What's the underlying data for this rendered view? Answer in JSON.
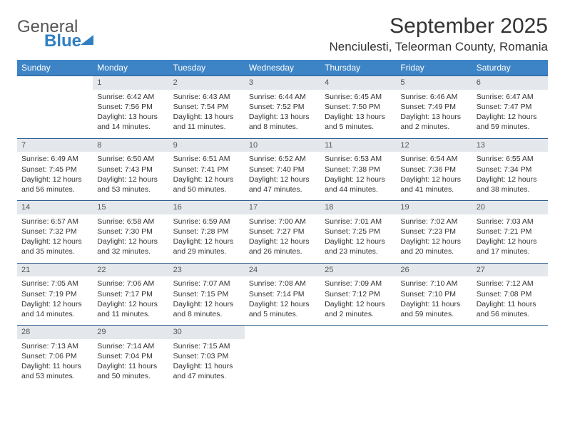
{
  "logo": {
    "general": "General",
    "blue": "Blue"
  },
  "title": "September 2025",
  "location": "Nenciulesti, Teleorman County, Romania",
  "weekdays": [
    "Sunday",
    "Monday",
    "Tuesday",
    "Wednesday",
    "Thursday",
    "Friday",
    "Saturday"
  ],
  "colors": {
    "header_bg": "#3d84c6",
    "daynum_bg": "#e4e8ec",
    "rule": "#2f5f8f",
    "logo_blue": "#2f7fc1"
  },
  "weeks": [
    {
      "nums": [
        "",
        "1",
        "2",
        "3",
        "4",
        "5",
        "6"
      ],
      "cells": [
        "",
        "Sunrise: 6:42 AM\nSunset: 7:56 PM\nDaylight: 13 hours and 14 minutes.",
        "Sunrise: 6:43 AM\nSunset: 7:54 PM\nDaylight: 13 hours and 11 minutes.",
        "Sunrise: 6:44 AM\nSunset: 7:52 PM\nDaylight: 13 hours and 8 minutes.",
        "Sunrise: 6:45 AM\nSunset: 7:50 PM\nDaylight: 13 hours and 5 minutes.",
        "Sunrise: 6:46 AM\nSunset: 7:49 PM\nDaylight: 13 hours and 2 minutes.",
        "Sunrise: 6:47 AM\nSunset: 7:47 PM\nDaylight: 12 hours and 59 minutes."
      ]
    },
    {
      "nums": [
        "7",
        "8",
        "9",
        "10",
        "11",
        "12",
        "13"
      ],
      "cells": [
        "Sunrise: 6:49 AM\nSunset: 7:45 PM\nDaylight: 12 hours and 56 minutes.",
        "Sunrise: 6:50 AM\nSunset: 7:43 PM\nDaylight: 12 hours and 53 minutes.",
        "Sunrise: 6:51 AM\nSunset: 7:41 PM\nDaylight: 12 hours and 50 minutes.",
        "Sunrise: 6:52 AM\nSunset: 7:40 PM\nDaylight: 12 hours and 47 minutes.",
        "Sunrise: 6:53 AM\nSunset: 7:38 PM\nDaylight: 12 hours and 44 minutes.",
        "Sunrise: 6:54 AM\nSunset: 7:36 PM\nDaylight: 12 hours and 41 minutes.",
        "Sunrise: 6:55 AM\nSunset: 7:34 PM\nDaylight: 12 hours and 38 minutes."
      ]
    },
    {
      "nums": [
        "14",
        "15",
        "16",
        "17",
        "18",
        "19",
        "20"
      ],
      "cells": [
        "Sunrise: 6:57 AM\nSunset: 7:32 PM\nDaylight: 12 hours and 35 minutes.",
        "Sunrise: 6:58 AM\nSunset: 7:30 PM\nDaylight: 12 hours and 32 minutes.",
        "Sunrise: 6:59 AM\nSunset: 7:28 PM\nDaylight: 12 hours and 29 minutes.",
        "Sunrise: 7:00 AM\nSunset: 7:27 PM\nDaylight: 12 hours and 26 minutes.",
        "Sunrise: 7:01 AM\nSunset: 7:25 PM\nDaylight: 12 hours and 23 minutes.",
        "Sunrise: 7:02 AM\nSunset: 7:23 PM\nDaylight: 12 hours and 20 minutes.",
        "Sunrise: 7:03 AM\nSunset: 7:21 PM\nDaylight: 12 hours and 17 minutes."
      ]
    },
    {
      "nums": [
        "21",
        "22",
        "23",
        "24",
        "25",
        "26",
        "27"
      ],
      "cells": [
        "Sunrise: 7:05 AM\nSunset: 7:19 PM\nDaylight: 12 hours and 14 minutes.",
        "Sunrise: 7:06 AM\nSunset: 7:17 PM\nDaylight: 12 hours and 11 minutes.",
        "Sunrise: 7:07 AM\nSunset: 7:15 PM\nDaylight: 12 hours and 8 minutes.",
        "Sunrise: 7:08 AM\nSunset: 7:14 PM\nDaylight: 12 hours and 5 minutes.",
        "Sunrise: 7:09 AM\nSunset: 7:12 PM\nDaylight: 12 hours and 2 minutes.",
        "Sunrise: 7:10 AM\nSunset: 7:10 PM\nDaylight: 11 hours and 59 minutes.",
        "Sunrise: 7:12 AM\nSunset: 7:08 PM\nDaylight: 11 hours and 56 minutes."
      ]
    },
    {
      "nums": [
        "28",
        "29",
        "30",
        "",
        "",
        "",
        ""
      ],
      "cells": [
        "Sunrise: 7:13 AM\nSunset: 7:06 PM\nDaylight: 11 hours and 53 minutes.",
        "Sunrise: 7:14 AM\nSunset: 7:04 PM\nDaylight: 11 hours and 50 minutes.",
        "Sunrise: 7:15 AM\nSunset: 7:03 PM\nDaylight: 11 hours and 47 minutes.",
        "",
        "",
        "",
        ""
      ]
    }
  ]
}
